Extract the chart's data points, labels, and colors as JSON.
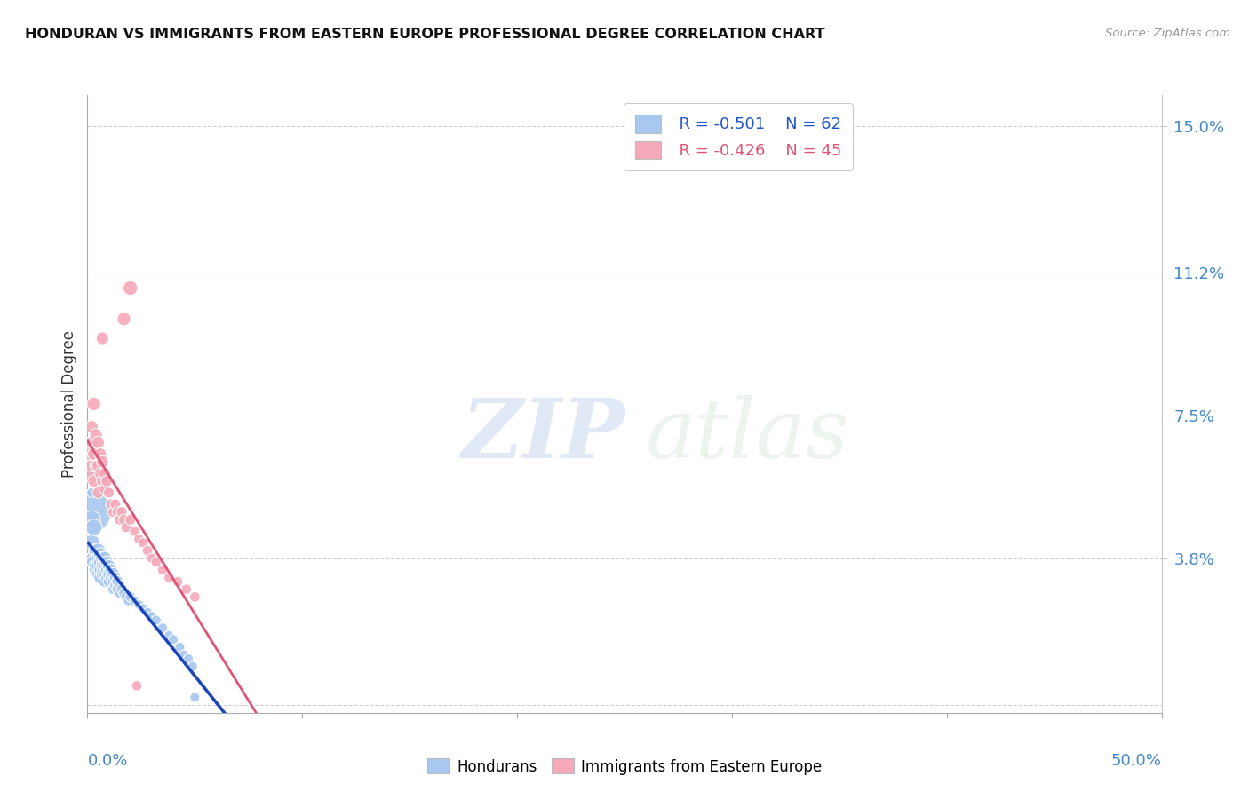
{
  "title": "HONDURAN VS IMMIGRANTS FROM EASTERN EUROPE PROFESSIONAL DEGREE CORRELATION CHART",
  "source": "Source: ZipAtlas.com",
  "ylabel": "Professional Degree",
  "ytick_vals": [
    0.0,
    0.038,
    0.075,
    0.112,
    0.15
  ],
  "ytick_labels": [
    "",
    "3.8%",
    "7.5%",
    "11.2%",
    "15.0%"
  ],
  "xlim": [
    0.0,
    0.5
  ],
  "ylim": [
    -0.002,
    0.158
  ],
  "watermark": "ZIPatlas",
  "legend_blue_r": "R = -0.501",
  "legend_blue_n": "N = 62",
  "legend_pink_r": "R = -0.426",
  "legend_pink_n": "N = 45",
  "blue_color": "#a8c8f0",
  "pink_color": "#f5a8b8",
  "blue_line_color": "#1a44bb",
  "pink_line_color": "#e05575",
  "blue_scatter": [
    [
      0.001,
      0.05
    ],
    [
      0.002,
      0.048
    ],
    [
      0.002,
      0.042
    ],
    [
      0.003,
      0.046
    ],
    [
      0.003,
      0.038
    ],
    [
      0.003,
      0.037
    ],
    [
      0.004,
      0.04
    ],
    [
      0.004,
      0.036
    ],
    [
      0.004,
      0.035
    ],
    [
      0.005,
      0.04
    ],
    [
      0.005,
      0.038
    ],
    [
      0.005,
      0.036
    ],
    [
      0.005,
      0.034
    ],
    [
      0.006,
      0.039
    ],
    [
      0.006,
      0.037
    ],
    [
      0.006,
      0.035
    ],
    [
      0.006,
      0.033
    ],
    [
      0.007,
      0.038
    ],
    [
      0.007,
      0.036
    ],
    [
      0.007,
      0.034
    ],
    [
      0.008,
      0.038
    ],
    [
      0.008,
      0.036
    ],
    [
      0.008,
      0.034
    ],
    [
      0.008,
      0.032
    ],
    [
      0.009,
      0.037
    ],
    [
      0.009,
      0.035
    ],
    [
      0.009,
      0.033
    ],
    [
      0.01,
      0.036
    ],
    [
      0.01,
      0.034
    ],
    [
      0.01,
      0.032
    ],
    [
      0.011,
      0.035
    ],
    [
      0.011,
      0.033
    ],
    [
      0.012,
      0.034
    ],
    [
      0.012,
      0.032
    ],
    [
      0.012,
      0.03
    ],
    [
      0.013,
      0.033
    ],
    [
      0.013,
      0.031
    ],
    [
      0.014,
      0.032
    ],
    [
      0.014,
      0.03
    ],
    [
      0.015,
      0.031
    ],
    [
      0.015,
      0.029
    ],
    [
      0.016,
      0.03
    ],
    [
      0.017,
      0.029
    ],
    [
      0.018,
      0.028
    ],
    [
      0.019,
      0.027
    ],
    [
      0.02,
      0.028
    ],
    [
      0.022,
      0.027
    ],
    [
      0.024,
      0.026
    ],
    [
      0.026,
      0.025
    ],
    [
      0.028,
      0.024
    ],
    [
      0.03,
      0.023
    ],
    [
      0.032,
      0.022
    ],
    [
      0.035,
      0.02
    ],
    [
      0.038,
      0.018
    ],
    [
      0.04,
      0.017
    ],
    [
      0.043,
      0.015
    ],
    [
      0.045,
      0.013
    ],
    [
      0.047,
      0.012
    ],
    [
      0.049,
      0.01
    ],
    [
      0.001,
      0.06
    ],
    [
      0.002,
      0.055
    ],
    [
      0.05,
      0.002
    ]
  ],
  "blue_sizes": [
    350,
    60,
    50,
    50,
    45,
    40,
    40,
    40,
    35,
    40,
    35,
    35,
    30,
    35,
    35,
    30,
    30,
    35,
    30,
    30,
    35,
    30,
    30,
    25,
    30,
    28,
    25,
    30,
    28,
    25,
    28,
    25,
    28,
    25,
    22,
    25,
    22,
    25,
    22,
    22,
    20,
    22,
    20,
    20,
    18,
    20,
    18,
    18,
    18,
    18,
    18,
    18,
    18,
    18,
    18,
    18,
    18,
    18,
    18,
    18,
    18,
    18
  ],
  "pink_scatter": [
    [
      0.001,
      0.065
    ],
    [
      0.001,
      0.06
    ],
    [
      0.002,
      0.072
    ],
    [
      0.002,
      0.068
    ],
    [
      0.002,
      0.062
    ],
    [
      0.003,
      0.078
    ],
    [
      0.003,
      0.065
    ],
    [
      0.003,
      0.058
    ],
    [
      0.004,
      0.07
    ],
    [
      0.004,
      0.062
    ],
    [
      0.005,
      0.068
    ],
    [
      0.005,
      0.062
    ],
    [
      0.005,
      0.055
    ],
    [
      0.006,
      0.065
    ],
    [
      0.006,
      0.06
    ],
    [
      0.007,
      0.063
    ],
    [
      0.007,
      0.058
    ],
    [
      0.008,
      0.06
    ],
    [
      0.008,
      0.056
    ],
    [
      0.009,
      0.058
    ],
    [
      0.01,
      0.055
    ],
    [
      0.011,
      0.052
    ],
    [
      0.012,
      0.05
    ],
    [
      0.013,
      0.052
    ],
    [
      0.014,
      0.05
    ],
    [
      0.015,
      0.048
    ],
    [
      0.016,
      0.05
    ],
    [
      0.017,
      0.048
    ],
    [
      0.018,
      0.046
    ],
    [
      0.02,
      0.048
    ],
    [
      0.022,
      0.045
    ],
    [
      0.024,
      0.043
    ],
    [
      0.026,
      0.042
    ],
    [
      0.028,
      0.04
    ],
    [
      0.03,
      0.038
    ],
    [
      0.032,
      0.037
    ],
    [
      0.035,
      0.035
    ],
    [
      0.038,
      0.033
    ],
    [
      0.042,
      0.032
    ],
    [
      0.046,
      0.03
    ],
    [
      0.017,
      0.1
    ],
    [
      0.02,
      0.108
    ],
    [
      0.007,
      0.095
    ],
    [
      0.05,
      0.028
    ],
    [
      0.023,
      0.005
    ]
  ],
  "pink_sizes": [
    30,
    28,
    32,
    30,
    28,
    35,
    30,
    28,
    30,
    28,
    30,
    28,
    25,
    28,
    25,
    28,
    25,
    25,
    22,
    25,
    22,
    22,
    22,
    22,
    22,
    22,
    22,
    22,
    20,
    22,
    20,
    20,
    20,
    20,
    20,
    20,
    20,
    20,
    20,
    20,
    35,
    40,
    30,
    20,
    20
  ]
}
